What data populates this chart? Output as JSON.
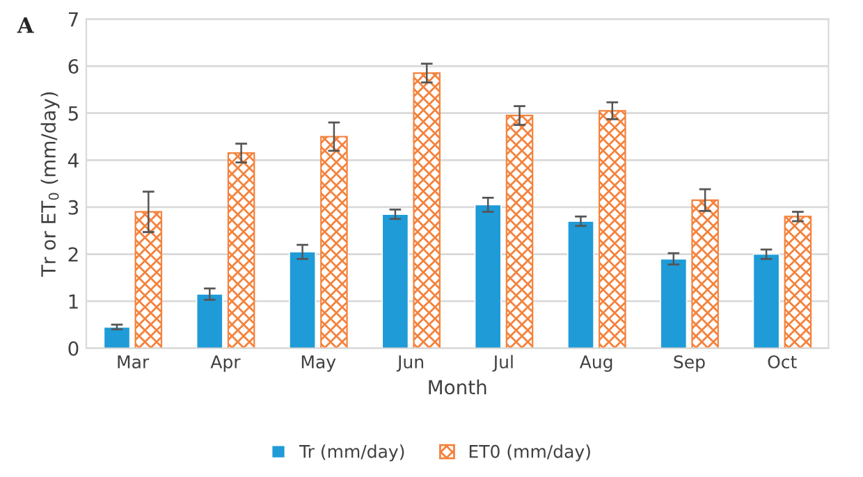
{
  "chart_data": {
    "type": "bar",
    "xlabel": "Month",
    "ylabel": "Tr or ET$_{0}$ (mm/day)",
    "annotations": [
      "A"
    ],
    "categories": [
      "Mar",
      "Apr",
      "May",
      "Jun",
      "Jul",
      "Aug",
      "Sep",
      "Oct"
    ],
    "series": [
      {
        "name": "Tr (mm/day)",
        "color": "#1f9bd7",
        "values": [
          0.45,
          1.15,
          2.05,
          2.85,
          3.05,
          2.7,
          1.9,
          2.0
        ],
        "errors": [
          0.05,
          0.12,
          0.15,
          0.1,
          0.15,
          0.1,
          0.12,
          0.1
        ]
      },
      {
        "name": "ET0 (mm/day)",
        "color": "#f4823c",
        "values": [
          2.9,
          4.15,
          4.5,
          5.85,
          4.95,
          5.05,
          3.15,
          2.8
        ],
        "errors": [
          0.43,
          0.2,
          0.3,
          0.2,
          0.2,
          0.18,
          0.23,
          0.1
        ]
      }
    ],
    "ylim": [
      0,
      7
    ],
    "yticks": [
      0,
      1,
      2,
      3,
      4,
      5,
      6,
      7
    ],
    "grid": "y",
    "legend": "bottom"
  }
}
